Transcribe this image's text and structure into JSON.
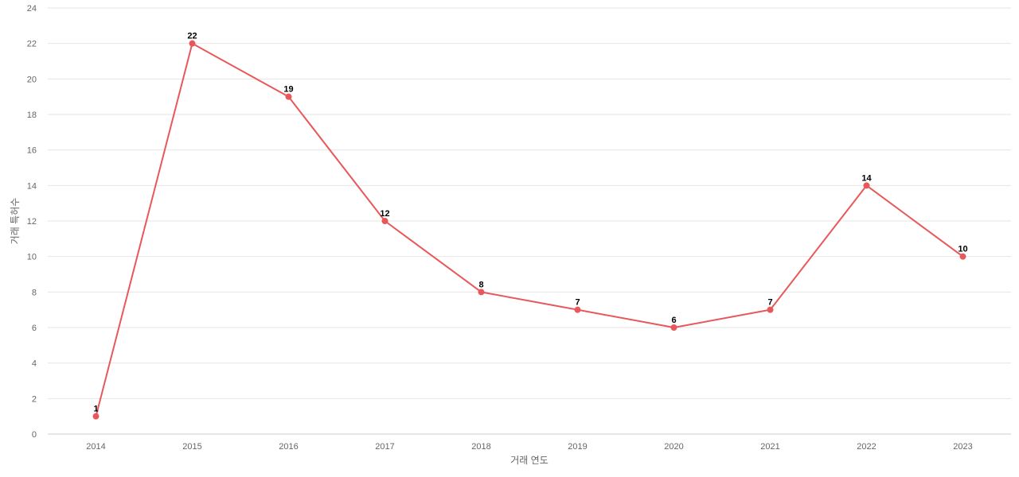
{
  "chart_data": {
    "type": "line",
    "x": [
      "2014",
      "2015",
      "2016",
      "2017",
      "2018",
      "2019",
      "2020",
      "2021",
      "2022",
      "2023"
    ],
    "series": [
      {
        "values": [
          1,
          22,
          19,
          12,
          8,
          7,
          6,
          7,
          14,
          10
        ]
      }
    ],
    "xlabel": "거래 연도",
    "ylabel": "거래 특허수",
    "ylim": [
      0,
      24
    ],
    "yticks": [
      0,
      2,
      4,
      6,
      8,
      10,
      12,
      14,
      16,
      18,
      20,
      22,
      24
    ],
    "grid": true,
    "data_labels": true,
    "colors": {
      "line": "#e8585a",
      "grid": "#e6e6e6",
      "tick_text": "#666666",
      "label_text": "#000000"
    }
  }
}
